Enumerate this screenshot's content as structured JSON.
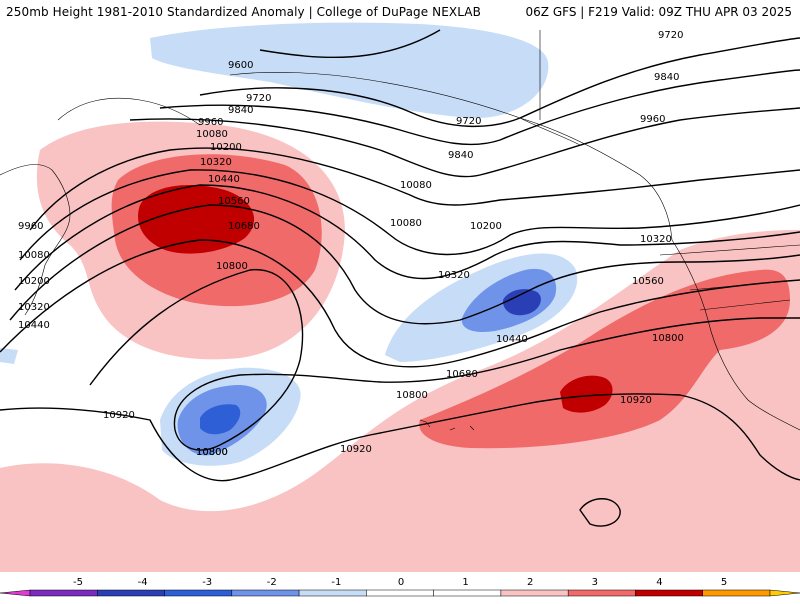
{
  "header": {
    "left": "250mb Height 1981-2010 Standardized Anomaly | College of DuPage NEXLAB",
    "right": "06Z GFS  |  F219 Valid: 09Z THU APR 03 2025"
  },
  "contours": {
    "labels": [
      "9600",
      "9720",
      "9720",
      "9840",
      "9840",
      "9720",
      "9840",
      "9960",
      "10080",
      "10200",
      "10320",
      "10440",
      "10560",
      "10680",
      "10800",
      "9960",
      "10080",
      "10200",
      "10320",
      "10440",
      "9960",
      "10080",
      "10200",
      "10080",
      "10320",
      "10560",
      "10320",
      "10440",
      "10680",
      "10800",
      "10800",
      "10920",
      "10800",
      "10920",
      "10920",
      "10800"
    ]
  },
  "colorbar": {
    "ticks": [
      "-5",
      "-4",
      "-3",
      "-2",
      "-1",
      "0",
      "1",
      "2",
      "3",
      "4",
      "5"
    ],
    "colors": [
      "#7b2cbf",
      "#2a3fb5",
      "#2f5fd6",
      "#6f93e8",
      "#c6dcf7",
      "#ffffff",
      "#ffffff",
      "#f9c3c3",
      "#f06a6a",
      "#c00000",
      "#ff9900"
    ],
    "end_left_color": "#e03ad6",
    "end_right_color": "#ffcc00"
  }
}
